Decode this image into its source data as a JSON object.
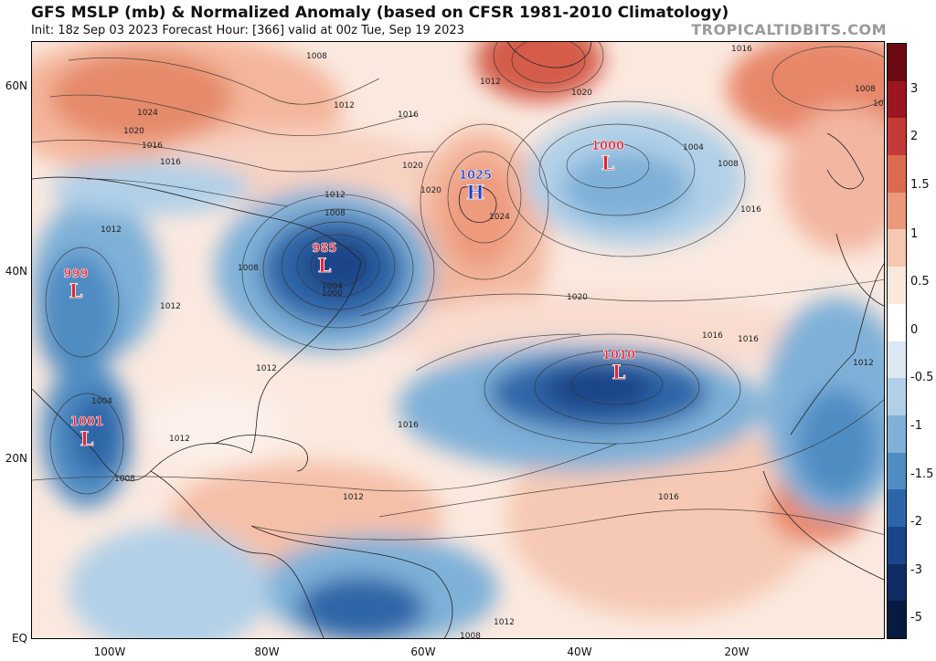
{
  "header": {
    "title": "GFS MSLP (mb) & Normalized Anomaly (based on CFSR 1981-2010 Climatology)",
    "subtitle": "Init: 18z Sep 03 2023   Forecast Hour: [366]   valid at 00z Tue, Sep 19 2023",
    "brand": "TROPICALTIDBITS.COM"
  },
  "map": {
    "lat_labels": [
      "60N",
      "40N",
      "20N",
      "EQ"
    ],
    "lon_labels": [
      "100W",
      "80W",
      "60W",
      "40W",
      "20W"
    ],
    "pressure_systems": [
      {
        "value": "985",
        "letter": "L",
        "color": "#e8202c",
        "name": "low-985"
      },
      {
        "value": "999",
        "letter": "L",
        "color": "#e8202c",
        "name": "low-999"
      },
      {
        "value": "1001",
        "letter": "L",
        "color": "#e8202c",
        "name": "low-1001"
      },
      {
        "value": "1000",
        "letter": "L",
        "color": "#e8202c",
        "name": "low-1000"
      },
      {
        "value": "1010",
        "letter": "L",
        "color": "#e8202c",
        "name": "low-1010"
      },
      {
        "value": "1025",
        "letter": "H",
        "color": "#1a3fd4",
        "name": "high-1025"
      }
    ],
    "isobar_labels": [
      "1008",
      "1024",
      "1020",
      "1016",
      "1016",
      "1012",
      "1016",
      "1020",
      "1012",
      "1008",
      "1012",
      "1020",
      "1012",
      "1008",
      "1012",
      "1024",
      "1020",
      "1016",
      "1004",
      "1008",
      "1016",
      "1020",
      "1004",
      "1000",
      "1012",
      "1016",
      "1016",
      "1012",
      "1004",
      "1012",
      "1008",
      "1016",
      "1012",
      "1016",
      "1008",
      "1012",
      "1008",
      "1012"
    ]
  },
  "colorbar": {
    "labels": [
      "3",
      "2",
      "1.5",
      "1",
      "0.5",
      "0",
      "-0.5",
      "-1",
      "-1.5",
      "-2",
      "-3",
      "-5"
    ],
    "colors": [
      "#6b0a12",
      "#9c1622",
      "#c43a36",
      "#db6a4f",
      "#ec987a",
      "#f6c8b2",
      "#fbe8dc",
      "#ffffff",
      "#dbe8f3",
      "#b1d0e8",
      "#7fb1d8",
      "#4f8cc2",
      "#2d66a8",
      "#1c4488",
      "#0f2c63",
      "#071b40"
    ]
  }
}
